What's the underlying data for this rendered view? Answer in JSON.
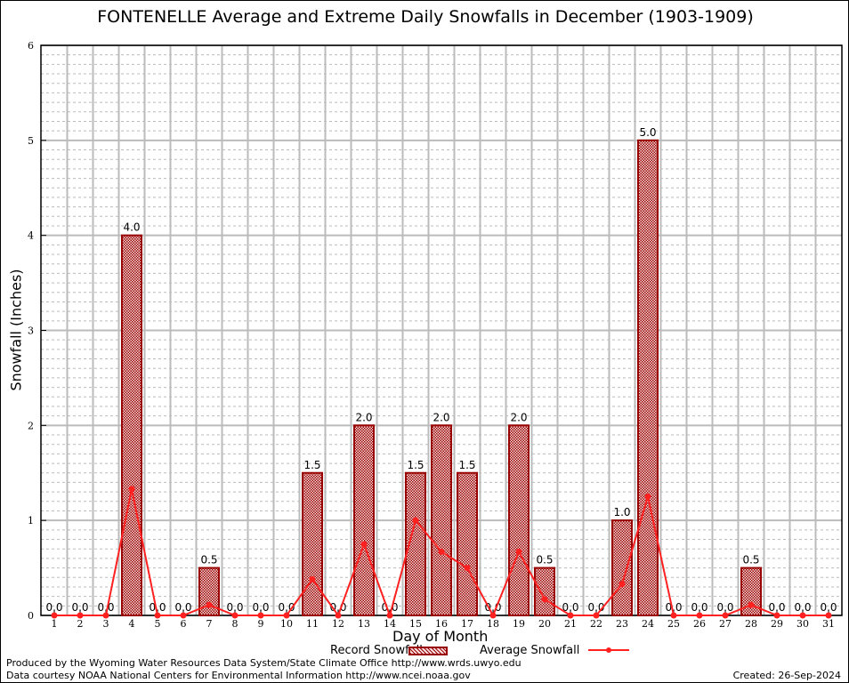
{
  "chart_data": {
    "type": "bar+line",
    "title": "FONTENELLE Average and Extreme Daily Snowfalls in December (1903-1909)",
    "xlabel": "Day of Month",
    "ylabel": "Snowfall (Inches)",
    "ylim": [
      0,
      6
    ],
    "yticks": [
      "0",
      "1",
      "2",
      "3",
      "4",
      "5",
      "6"
    ],
    "categories": [
      "1",
      "2",
      "3",
      "4",
      "5",
      "6",
      "7",
      "8",
      "9",
      "10",
      "11",
      "12",
      "13",
      "14",
      "15",
      "16",
      "17",
      "18",
      "19",
      "20",
      "21",
      "22",
      "23",
      "24",
      "25",
      "26",
      "27",
      "28",
      "29",
      "30",
      "31"
    ],
    "grid": true,
    "legend_position": "bottom",
    "series": [
      {
        "name": "Record Snowfall",
        "type": "bar",
        "color": "#990000",
        "values": [
          0,
          0,
          0,
          4.0,
          0,
          0,
          0.5,
          0,
          0,
          0,
          1.5,
          0,
          2.0,
          0,
          1.5,
          2.0,
          1.5,
          0,
          2.0,
          0.5,
          0,
          0,
          1.0,
          5.0,
          0,
          0,
          0,
          0.5,
          0,
          0,
          0
        ],
        "labels": [
          "0.0",
          "0.0",
          "0.0",
          "4.0",
          "0.0",
          "0.0",
          "0.5",
          "0.0",
          "0.0",
          "0.0",
          "1.5",
          "0.0",
          "2.0",
          "0.0",
          "1.5",
          "2.0",
          "1.5",
          "0.0",
          "2.0",
          "0.5",
          "0.0",
          "0.0",
          "1.0",
          "5.0",
          "0.0",
          "0.0",
          "0.0",
          "0.5",
          "0.0",
          "0.0",
          "0.0"
        ]
      },
      {
        "name": "Average Snowfall",
        "type": "line",
        "color": "#ff2020",
        "values": [
          0,
          0,
          0,
          1.33,
          0,
          0,
          0.11,
          0,
          0,
          0,
          0.38,
          0,
          0.75,
          0,
          1.0,
          0.67,
          0.5,
          0,
          0.67,
          0.17,
          0,
          0,
          0.33,
          1.25,
          0,
          0,
          0,
          0.11,
          0,
          0,
          0
        ]
      }
    ]
  },
  "footer": {
    "produced": "Produced by the Wyoming Water Resources Data System/State Climate Office http://www.wrds.uwyo.edu",
    "courtesy": "Data courtesy NOAA National Centers for Environmental Information http://www.ncei.noaa.gov",
    "created": "Created: 26-Sep-2024"
  }
}
